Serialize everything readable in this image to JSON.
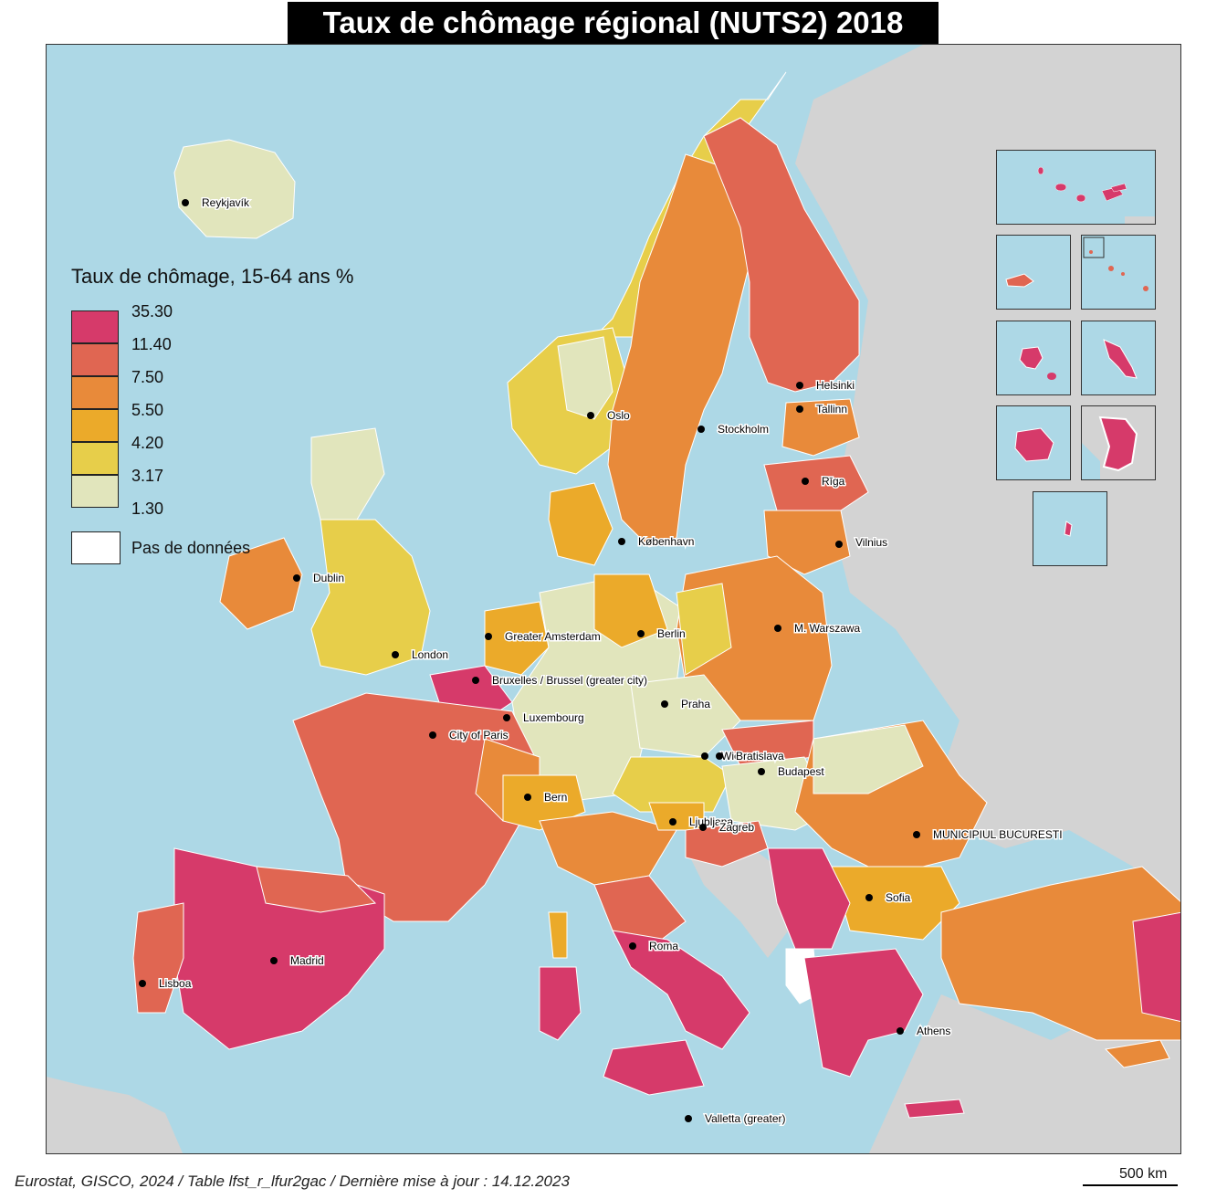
{
  "title": "Taux de chômage régional (NUTS2) 2018",
  "legend": {
    "title": "Taux de chômage, 15-64 ans %",
    "classes": [
      {
        "value": "35.30",
        "color": "#d63a6a"
      },
      {
        "value": "11.40",
        "color": "#e06652"
      },
      {
        "value": "7.50",
        "color": "#e88a3a"
      },
      {
        "value": "5.50",
        "color": "#ebaa2a"
      },
      {
        "value": "4.20",
        "color": "#e7ce4a"
      },
      {
        "value": "3.17",
        "color": "#e1e5bc"
      },
      {
        "value": "1.30",
        "color": ""
      }
    ],
    "no_data_label": "Pas de données",
    "no_data_color": "#ffffff"
  },
  "colors": {
    "sea": "#add8e6",
    "non_eu_land": "#d3d3d3",
    "border": "#ffffff"
  },
  "cities": [
    {
      "name": "Reykjavík"
    },
    {
      "name": "Oslo"
    },
    {
      "name": "Stockholm"
    },
    {
      "name": "Helsinki"
    },
    {
      "name": "Tallinn"
    },
    {
      "name": "Rīga"
    },
    {
      "name": "Vilnius"
    },
    {
      "name": "København"
    },
    {
      "name": "Dublin"
    },
    {
      "name": "London"
    },
    {
      "name": "Greater Amsterdam"
    },
    {
      "name": "Berlin"
    },
    {
      "name": "M. Warszawa"
    },
    {
      "name": "Bruxelles / Brussel (greater city)"
    },
    {
      "name": "Luxembourg"
    },
    {
      "name": "Praha"
    },
    {
      "name": "City of Paris"
    },
    {
      "name": "Wien"
    },
    {
      "name": "Bratislava"
    },
    {
      "name": "Budapest"
    },
    {
      "name": "Bern"
    },
    {
      "name": "Ljubljana"
    },
    {
      "name": "Zagreb"
    },
    {
      "name": "MUNICIPIUL BUCURESTI"
    },
    {
      "name": "Sofia"
    },
    {
      "name": "Madrid"
    },
    {
      "name": "Lisboa"
    },
    {
      "name": "Roma"
    },
    {
      "name": "Athens"
    },
    {
      "name": "Valletta (greater)"
    }
  ],
  "footer": {
    "source": "Eurostat, GISCO, 2024 / Table lfst_r_lfur2gac / Dernière mise à jour :  14.12.2023",
    "scale": "500 km"
  }
}
